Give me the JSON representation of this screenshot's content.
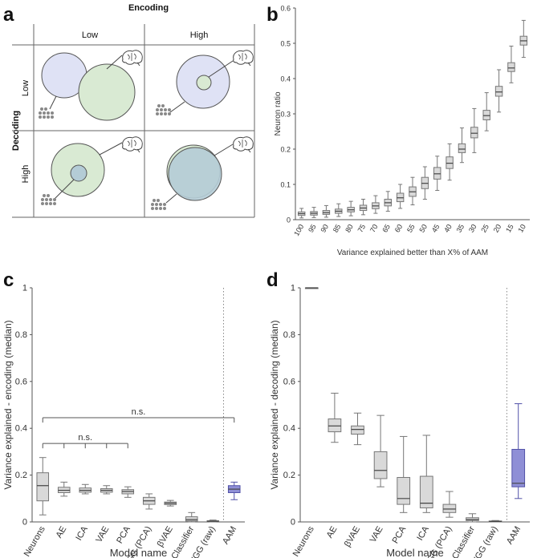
{
  "panel_labels": [
    "a",
    "b",
    "c",
    "d"
  ],
  "panel_a": {
    "encoding_label": "Encoding",
    "decoding_label": "Decoding",
    "low_label": "Low",
    "high_label": "High",
    "icons": [
      "brain-icon",
      "neuron-dots-icon"
    ],
    "colors": {
      "neurons": "#dfe2f5",
      "model": "#d9ead3",
      "overlap": "#b4ccd6",
      "stroke": "#555555"
    }
  },
  "chart_data": [
    {
      "panel": "b",
      "type": "box",
      "title": "",
      "xlabel": "Variance explained better than X% of AAM",
      "ylabel": "Neuron ratio",
      "ylim": [
        0,
        0.6
      ],
      "yticks": [
        "0",
        "0.1",
        "0.2",
        "0.3",
        "0.4",
        "0.5",
        "0.6"
      ],
      "categories": [
        "100",
        "95",
        "90",
        "85",
        "80",
        "75",
        "70",
        "65",
        "60",
        "55",
        "50",
        "45",
        "40",
        "35",
        "30",
        "25",
        "20",
        "15",
        "10"
      ],
      "medians": [
        0.017,
        0.018,
        0.02,
        0.024,
        0.028,
        0.033,
        0.039,
        0.048,
        0.062,
        0.079,
        0.103,
        0.13,
        0.16,
        0.2,
        0.245,
        0.295,
        0.362,
        0.43,
        0.507
      ],
      "q1": [
        0.012,
        0.013,
        0.015,
        0.018,
        0.022,
        0.026,
        0.031,
        0.039,
        0.051,
        0.066,
        0.088,
        0.115,
        0.145,
        0.19,
        0.232,
        0.283,
        0.35,
        0.42,
        0.495
      ],
      "q3": [
        0.022,
        0.023,
        0.026,
        0.03,
        0.035,
        0.041,
        0.048,
        0.058,
        0.075,
        0.093,
        0.12,
        0.148,
        0.178,
        0.215,
        0.262,
        0.31,
        0.378,
        0.445,
        0.52
      ],
      "whisker_low": [
        0.005,
        0.006,
        0.007,
        0.009,
        0.011,
        0.014,
        0.018,
        0.024,
        0.032,
        0.042,
        0.058,
        0.083,
        0.112,
        0.162,
        0.19,
        0.252,
        0.305,
        0.388,
        0.46
      ],
      "whisker_high": [
        0.032,
        0.035,
        0.04,
        0.045,
        0.052,
        0.058,
        0.068,
        0.08,
        0.1,
        0.12,
        0.15,
        0.18,
        0.215,
        0.26,
        0.315,
        0.36,
        0.425,
        0.492,
        0.565
      ],
      "box_color": "#d9d9d9"
    },
    {
      "panel": "c",
      "type": "box",
      "title": "",
      "xlabel": "Model name",
      "ylabel": "Variance explained - encoding (median)",
      "ylim": [
        0,
        1
      ],
      "yticks": [
        "0",
        "0.2",
        "0.4",
        "0.6",
        "0.8",
        "1"
      ],
      "categories": [
        "Neurons",
        "AE",
        "ICA",
        "VAE",
        "PCA",
        "VGG (PCA)",
        "βVAE",
        "Classifier",
        "VGG (raw)",
        "AAM"
      ],
      "medians": [
        0.155,
        0.135,
        0.135,
        0.135,
        0.13,
        0.09,
        0.08,
        0.01,
        0.003,
        0.14
      ],
      "q1": [
        0.09,
        0.125,
        0.127,
        0.127,
        0.12,
        0.075,
        0.074,
        0.004,
        0.002,
        0.125
      ],
      "q3": [
        0.21,
        0.148,
        0.145,
        0.142,
        0.138,
        0.105,
        0.085,
        0.022,
        0.005,
        0.155
      ],
      "whisker_low": [
        0.03,
        0.11,
        0.12,
        0.12,
        0.105,
        0.055,
        0.068,
        0.0,
        0.0,
        0.095
      ],
      "whisker_high": [
        0.275,
        0.17,
        0.16,
        0.155,
        0.15,
        0.12,
        0.092,
        0.04,
        0.008,
        0.17
      ],
      "box_colors": {
        "default": "#d9d9d9",
        "AAM": "#8f8fd6"
      },
      "separator_before": "AAM",
      "significance": [
        {
          "label": "n.s.",
          "from": "Neurons",
          "to": "AAM",
          "level": 0.445
        },
        {
          "label": "n.s.",
          "from": "Neurons",
          "to": "PCA",
          "level": 0.335
        }
      ]
    },
    {
      "panel": "d",
      "type": "box",
      "title": "",
      "xlabel": "Model name",
      "ylabel": "Variance explained - decoding (median)",
      "ylim": [
        0,
        1
      ],
      "yticks": [
        "0",
        "0.2",
        "0.4",
        "0.6",
        "0.8",
        "1"
      ],
      "categories": [
        "Neurons",
        "AE",
        "βVAE",
        "VAE",
        "PCA",
        "ICA",
        "VGG (PCA)",
        "Classifier",
        "VGG (raw)",
        "AAM"
      ],
      "medians": [
        1.0,
        0.41,
        0.395,
        0.22,
        0.1,
        0.08,
        0.055,
        0.01,
        0.002,
        0.165
      ],
      "q1": [
        1.0,
        0.385,
        0.375,
        0.185,
        0.075,
        0.06,
        0.04,
        0.006,
        0.001,
        0.15
      ],
      "q3": [
        1.0,
        0.44,
        0.41,
        0.3,
        0.19,
        0.195,
        0.075,
        0.018,
        0.004,
        0.31
      ],
      "whisker_low": [
        1.0,
        0.34,
        0.33,
        0.15,
        0.04,
        0.04,
        0.02,
        0.0,
        0.0,
        0.1
      ],
      "whisker_high": [
        1.0,
        0.55,
        0.465,
        0.455,
        0.365,
        0.37,
        0.13,
        0.035,
        0.006,
        0.505
      ],
      "box_colors": {
        "default": "#d9d9d9",
        "AAM": "#8f8fd6"
      },
      "separator_before": "AAM"
    }
  ]
}
